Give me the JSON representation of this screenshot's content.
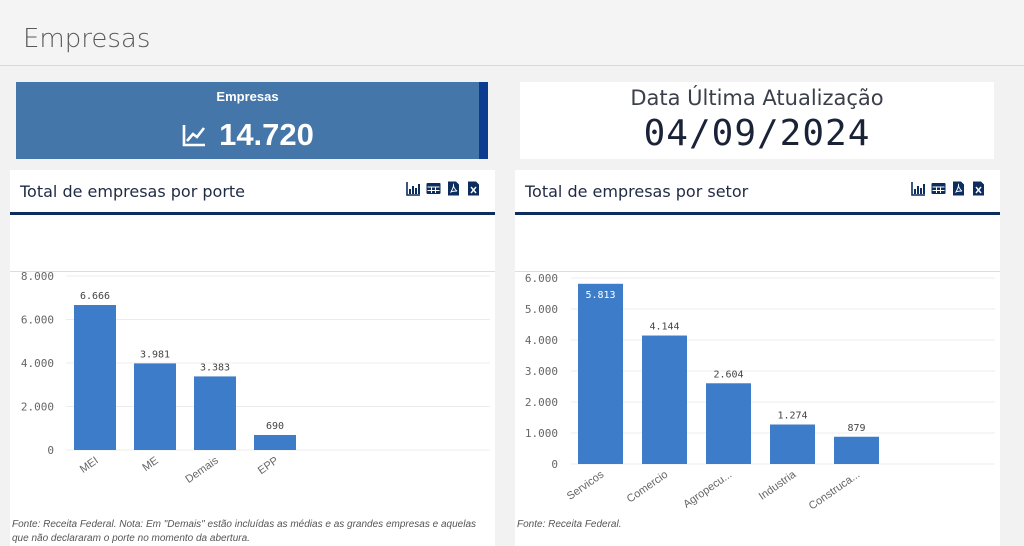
{
  "header": {
    "title": "Empresas"
  },
  "kpi_empresas": {
    "label": "Empresas",
    "value": "14.720",
    "icon": "trend-line-icon"
  },
  "kpi_update": {
    "label": "Data Última Atualização",
    "value": "04/09/2024"
  },
  "panel_porte": {
    "title": "Total de empresas por porte",
    "footnote": "Fonte: Receita Federal. Nota: Em \"Demais\" estão incluídas as médias e as grandes empresas e aquelas que não declararam o porte no momento da abertura."
  },
  "panel_setor": {
    "title": "Total de empresas por setor",
    "footnote": "Fonte: Receita Federal."
  },
  "colors": {
    "bar": "#3d7cc9",
    "kpi_bg": "#4576a9",
    "kpi_accent": "#0c3c8f",
    "header_line": "#0c2d5e"
  },
  "chart_data": [
    {
      "type": "bar",
      "categories": [
        "MEI",
        "ME",
        "Demais",
        "EPP"
      ],
      "values": [
        6666,
        3981,
        3383,
        690
      ],
      "value_labels": [
        "6.666",
        "3.981",
        "3.383",
        "690"
      ],
      "yticks": [
        "0",
        "2.000",
        "4.000",
        "6.000",
        "8.000"
      ],
      "ylim": [
        0,
        8000
      ]
    },
    {
      "type": "bar",
      "categories": [
        "Servicos",
        "Comercio",
        "Agropecu...",
        "Industria",
        "Construca..."
      ],
      "values": [
        5813,
        4144,
        2604,
        1274,
        879
      ],
      "value_labels": [
        "5.813",
        "4.144",
        "2.604",
        "1.274",
        "879"
      ],
      "yticks": [
        "0",
        "1.000",
        "2.000",
        "3.000",
        "4.000",
        "5.000",
        "6.000"
      ],
      "ylim": [
        0,
        6000
      ]
    }
  ]
}
